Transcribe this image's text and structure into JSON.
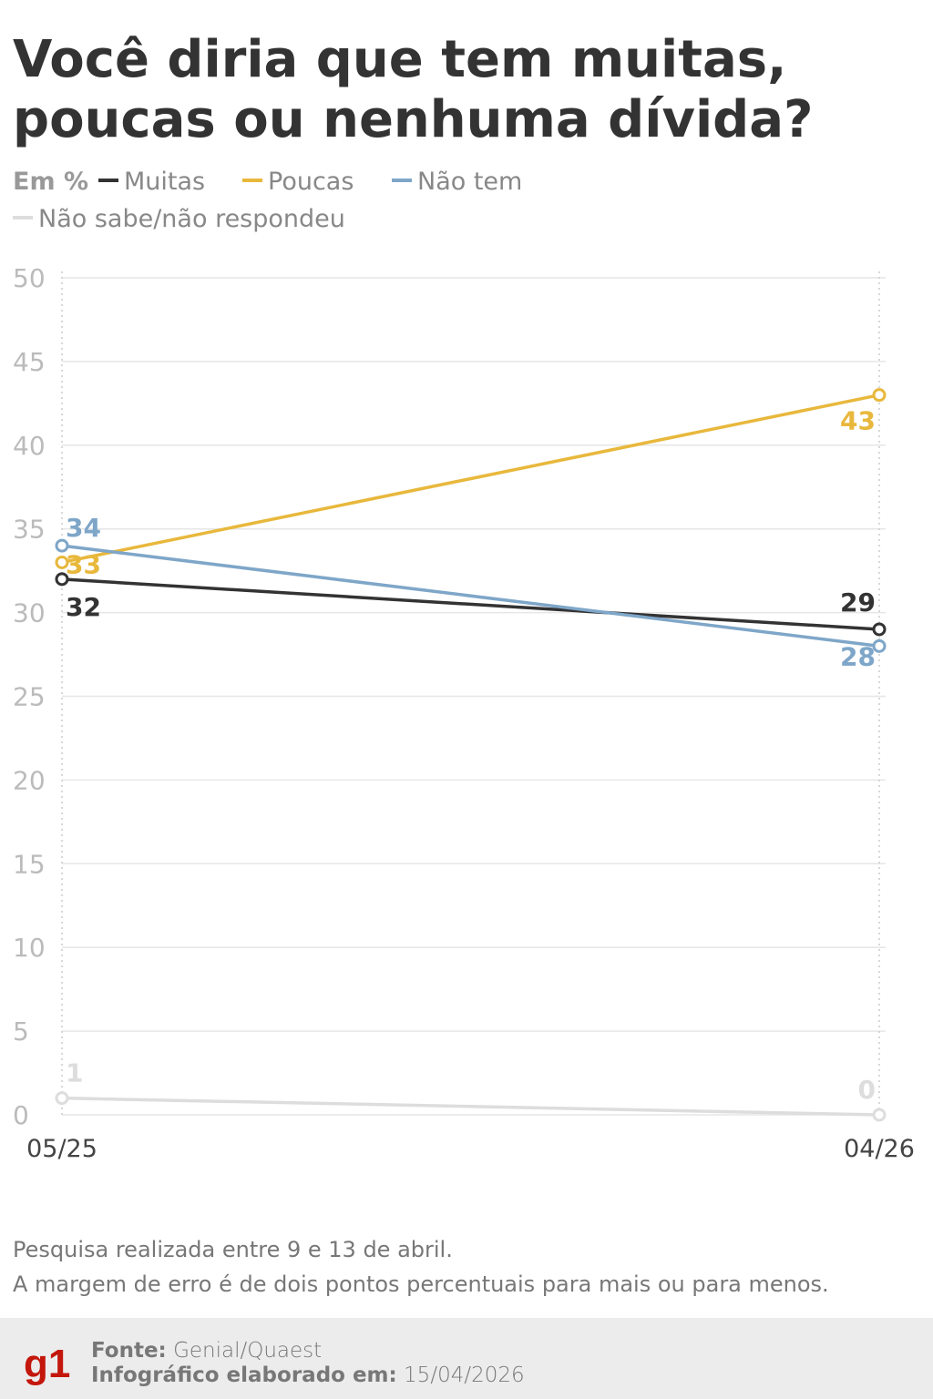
{
  "chart_data": {
    "type": "line",
    "title": [
      "Você diria que tem muitas,",
      "poucas ou nenhuma dívida?"
    ],
    "y_label": "Em %",
    "categories": [
      "05/25",
      "04/26"
    ],
    "series": [
      {
        "name": "Muitas",
        "color": "#333333",
        "values": [
          32,
          29
        ]
      },
      {
        "name": "Poucas",
        "color": "#e8b83c",
        "values": [
          33,
          43
        ]
      },
      {
        "name": "Não tem",
        "color": "#7ea6c8",
        "values": [
          34,
          28
        ]
      },
      {
        "name": "Não sabe/não respondeu",
        "color": "#dddddd",
        "values": [
          1,
          0
        ]
      }
    ],
    "ylim": [
      0,
      50
    ],
    "yticks": [
      0,
      5,
      10,
      15,
      20,
      25,
      30,
      35,
      40,
      45,
      50
    ],
    "grid": true,
    "notes": [
      "Pesquisa realizada entre 9 e 13 de abril.",
      "A margem de erro é de dois pontos percentuais para mais ou para menos."
    ],
    "footer": {
      "logo": "g1",
      "source_label": "Fonte:",
      "source": "Genial/Quaest",
      "date_label": "Infográfico elaborado em:",
      "date": "15/04/2026"
    }
  }
}
